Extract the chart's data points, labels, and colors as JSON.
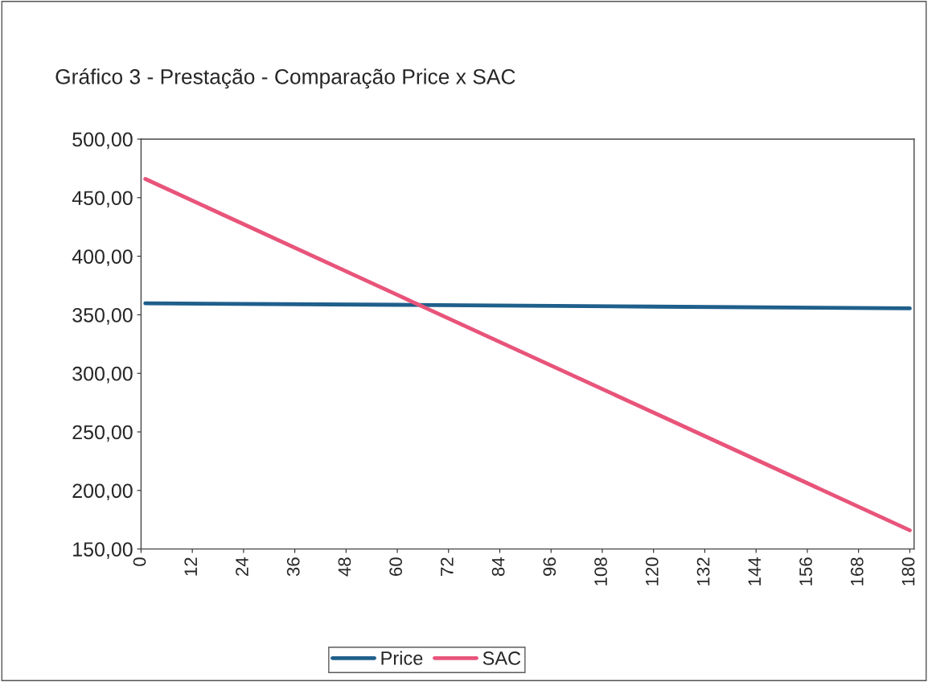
{
  "chart_data": {
    "type": "line",
    "title": "Gráfico 3 - Prestação - Comparação Price x SAC",
    "x": [
      1,
      60,
      120,
      180
    ],
    "series": [
      {
        "name": "Price",
        "color": "#1f5f8b",
        "values": [
          359.8,
          358.5,
          357.0,
          355.5
        ]
      },
      {
        "name": "SAC",
        "color": "#e8547a",
        "values": [
          466,
          367,
          266.5,
          166
        ]
      }
    ],
    "xlim": [
      0,
      181
    ],
    "xticks": [
      0,
      12,
      24,
      36,
      48,
      60,
      72,
      84,
      96,
      108,
      120,
      132,
      144,
      156,
      168,
      180
    ],
    "ylim": [
      150,
      500
    ],
    "yticks": [
      {
        "value": 150,
        "label": "150,00"
      },
      {
        "value": 200,
        "label": "200,00"
      },
      {
        "value": 250,
        "label": "250,00"
      },
      {
        "value": 300,
        "label": "300,00"
      },
      {
        "value": 350,
        "label": "350,00"
      },
      {
        "value": 400,
        "label": "400,00"
      },
      {
        "value": 450,
        "label": "450,00"
      },
      {
        "value": 500,
        "label": "500,00"
      }
    ],
    "grid": false,
    "legend": "bottom",
    "marker": "none",
    "line_style": "solid"
  }
}
